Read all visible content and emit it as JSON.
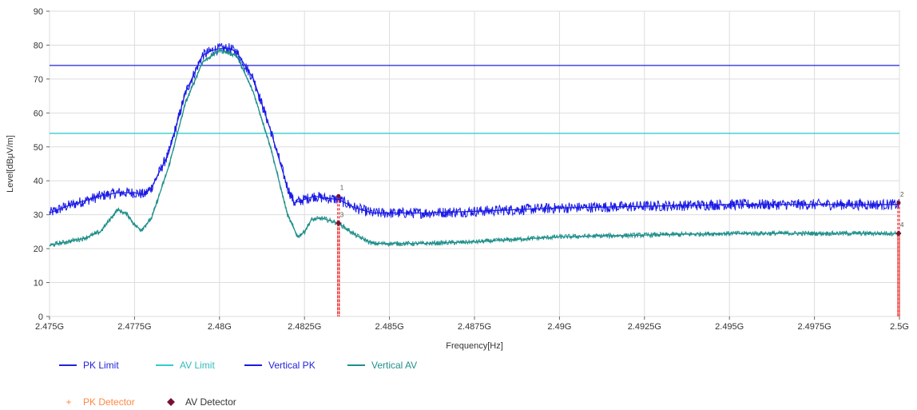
{
  "chart_data": {
    "type": "line",
    "title": "",
    "xlabel": "Frequency[Hz]",
    "ylabel": "Level[dBμV/m]",
    "xlim": [
      2.475,
      2.5
    ],
    "ylim": [
      0,
      90
    ],
    "grid": true,
    "x_ticks": [
      2.475,
      2.4775,
      2.48,
      2.4825,
      2.485,
      2.4875,
      2.49,
      2.4925,
      2.495,
      2.4975,
      2.5
    ],
    "x_tick_labels": [
      "2.475G",
      "2.4775G",
      "2.48G",
      "2.4825G",
      "2.485G",
      "2.4875G",
      "2.49G",
      "2.4925G",
      "2.495G",
      "2.4975G",
      "2.5G"
    ],
    "y_ticks": [
      0,
      10,
      20,
      30,
      40,
      50,
      60,
      70,
      80,
      90
    ],
    "y_tick_labels": [
      "0",
      "10",
      "20",
      "30",
      "40",
      "50",
      "60",
      "70",
      "80",
      "90"
    ],
    "limits": [
      {
        "name": "PK Limit",
        "value": 74,
        "color": "#2222dd"
      },
      {
        "name": "AV Limit",
        "value": 54,
        "color": "#33cccc"
      }
    ],
    "series": [
      {
        "name": "Vertical PK",
        "color": "#1a1ae6",
        "points": [
          [
            2.475,
            30.5
          ],
          [
            2.4755,
            32.5
          ],
          [
            2.476,
            34
          ],
          [
            2.4765,
            35.5
          ],
          [
            2.477,
            36.5
          ],
          [
            2.4775,
            36.5
          ],
          [
            2.4778,
            36
          ],
          [
            2.478,
            38
          ],
          [
            2.4785,
            48
          ],
          [
            2.479,
            66
          ],
          [
            2.4795,
            77
          ],
          [
            2.4798,
            78.5
          ],
          [
            2.48,
            79
          ],
          [
            2.4803,
            79
          ],
          [
            2.4805,
            78
          ],
          [
            2.481,
            70
          ],
          [
            2.4815,
            55
          ],
          [
            2.482,
            38
          ],
          [
            2.4822,
            33.5
          ],
          [
            2.4825,
            34.5
          ],
          [
            2.4828,
            35.5
          ],
          [
            2.483,
            35
          ],
          [
            2.4835,
            34.5
          ],
          [
            2.484,
            32
          ],
          [
            2.4845,
            30.5
          ],
          [
            2.486,
            30.5
          ],
          [
            2.4875,
            31
          ],
          [
            2.49,
            32
          ],
          [
            2.4925,
            32.5
          ],
          [
            2.495,
            33
          ],
          [
            2.4975,
            33
          ],
          [
            2.5,
            33
          ]
        ]
      },
      {
        "name": "Vertical AV",
        "color": "#1f8f8a",
        "points": [
          [
            2.475,
            21
          ],
          [
            2.4755,
            22
          ],
          [
            2.476,
            23
          ],
          [
            2.4765,
            25
          ],
          [
            2.477,
            31.5
          ],
          [
            2.4773,
            30
          ],
          [
            2.4775,
            27
          ],
          [
            2.4777,
            25.5
          ],
          [
            2.478,
            29
          ],
          [
            2.4785,
            44
          ],
          [
            2.479,
            63
          ],
          [
            2.4795,
            75
          ],
          [
            2.48,
            78.5
          ],
          [
            2.4805,
            77
          ],
          [
            2.481,
            66
          ],
          [
            2.4815,
            50
          ],
          [
            2.482,
            30
          ],
          [
            2.4823,
            23.5
          ],
          [
            2.4825,
            25
          ],
          [
            2.4827,
            28.5
          ],
          [
            2.483,
            29
          ],
          [
            2.4835,
            27.5
          ],
          [
            2.484,
            24
          ],
          [
            2.4845,
            21.5
          ],
          [
            2.486,
            21.5
          ],
          [
            2.4875,
            22
          ],
          [
            2.49,
            23.5
          ],
          [
            2.4925,
            24
          ],
          [
            2.495,
            24.5
          ],
          [
            2.4975,
            24.5
          ],
          [
            2.5,
            24.5
          ]
        ]
      }
    ],
    "markers": [
      {
        "label": "1",
        "detector": "PK Detector",
        "x": 2.4835,
        "y": 35.5
      },
      {
        "label": "2",
        "detector": "PK Detector",
        "x": 2.5,
        "y": 33.5
      },
      {
        "label": "3",
        "detector": "AV Detector",
        "x": 2.4835,
        "y": 27.5
      },
      {
        "label": "4",
        "detector": "AV Detector",
        "x": 2.5,
        "y": 24.5
      }
    ],
    "marker_colors": {
      "pk": "#ff8844",
      "av": "#7a1030",
      "drop_line": "#ee2222"
    },
    "legend": {
      "placement": "bottom-left",
      "row1": [
        {
          "name": "PK Limit",
          "color": "#2222dd",
          "text_color": "#2222dd"
        },
        {
          "name": "AV Limit",
          "color": "#33cccc",
          "text_color": "#33bbbb"
        },
        {
          "name": "Vertical PK",
          "color": "#1a1ae6",
          "text_color": "#2222dd"
        },
        {
          "name": "Vertical AV",
          "color": "#1f8f8a",
          "text_color": "#1f8f8a"
        }
      ],
      "row2": [
        {
          "name": "PK Detector",
          "symbol": "+",
          "color": "#ff8844",
          "text_color": "#ff8844"
        },
        {
          "name": "AV Detector",
          "symbol": "◆",
          "color": "#7a1030",
          "text_color": "#333333"
        }
      ]
    }
  }
}
